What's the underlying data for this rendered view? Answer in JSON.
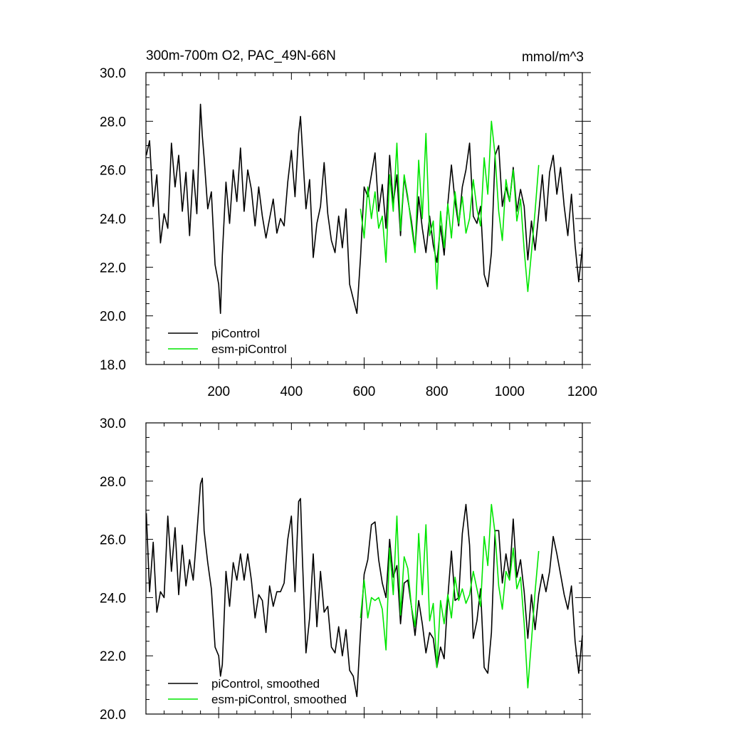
{
  "chart_data": [
    {
      "type": "line",
      "title": "300m-700m O2, PAC_49N-66N",
      "units": "mmol/m^3",
      "xlim": [
        0,
        1200
      ],
      "ylim": [
        18.0,
        30.0
      ],
      "xticks": [
        200,
        400,
        600,
        800,
        1000,
        1200
      ],
      "yticks": [
        "18.0",
        "20.0",
        "22.0",
        "24.0",
        "26.0",
        "28.0",
        "30.0"
      ],
      "grid": false,
      "legend": "bottom-left",
      "series": [
        {
          "name": "piControl",
          "color": "#000000",
          "x": [
            1,
            10,
            20,
            30,
            40,
            50,
            60,
            70,
            80,
            90,
            100,
            110,
            120,
            130,
            140,
            150,
            155,
            160,
            170,
            180,
            190,
            200,
            205,
            210,
            220,
            230,
            240,
            250,
            260,
            270,
            280,
            290,
            300,
            310,
            320,
            330,
            340,
            350,
            360,
            370,
            380,
            390,
            400,
            410,
            420,
            425,
            430,
            440,
            450,
            460,
            470,
            480,
            490,
            500,
            510,
            520,
            530,
            540,
            550,
            560,
            570,
            580,
            590,
            600,
            610,
            620,
            630,
            640,
            650,
            660,
            670,
            680,
            690,
            700,
            710,
            720,
            730,
            740,
            750,
            760,
            770,
            780,
            790,
            800,
            810,
            820,
            830,
            840,
            850,
            860,
            870,
            880,
            890,
            900,
            910,
            920,
            930,
            940,
            950,
            960,
            970,
            980,
            990,
            1000,
            1010,
            1020,
            1030,
            1040,
            1050,
            1060,
            1070,
            1080,
            1090,
            1100,
            1110,
            1120,
            1130,
            1140,
            1150,
            1160,
            1170,
            1180,
            1190,
            1200
          ],
          "values": [
            26.6,
            27.2,
            24.5,
            25.8,
            23.0,
            24.2,
            23.6,
            27.1,
            25.3,
            26.6,
            24.3,
            25.9,
            23.3,
            26.0,
            24.2,
            28.7,
            27.4,
            26.5,
            24.4,
            25.1,
            22.1,
            21.3,
            20.1,
            22.5,
            25.5,
            23.8,
            26.0,
            24.7,
            26.9,
            24.3,
            26.0,
            25.2,
            23.7,
            25.3,
            24.1,
            23.2,
            24.0,
            24.8,
            23.4,
            24.0,
            23.7,
            25.5,
            26.8,
            24.9,
            27.5,
            28.2,
            26.9,
            24.4,
            25.6,
            22.4,
            23.8,
            24.5,
            26.3,
            24.2,
            23.1,
            22.6,
            24.1,
            22.8,
            24.4,
            21.3,
            20.7,
            20.1,
            22.4,
            25.3,
            24.9,
            25.8,
            26.7,
            24.3,
            25.4,
            23.6,
            26.6,
            24.6,
            25.8,
            23.3,
            25.7,
            24.8,
            23.9,
            22.7,
            24.9,
            23.6,
            22.6,
            24.1,
            22.9,
            22.2,
            23.7,
            22.5,
            24.6,
            26.2,
            24.7,
            23.7,
            25.3,
            26.0,
            27.1,
            24.1,
            23.8,
            24.5,
            21.7,
            21.2,
            22.6,
            26.6,
            27.0,
            24.5,
            25.3,
            24.7,
            26.1,
            24.3,
            25.2,
            24.5,
            22.3,
            23.9,
            22.7,
            24.2,
            25.8,
            23.9,
            25.9,
            26.6,
            25.0,
            26.1,
            24.5,
            23.3,
            25.0,
            22.9,
            21.4,
            22.8
          ]
        },
        {
          "name": "esm-piControl",
          "color": "#00e600",
          "x": [
            590,
            600,
            610,
            620,
            630,
            640,
            650,
            660,
            670,
            680,
            690,
            700,
            710,
            720,
            730,
            740,
            750,
            760,
            770,
            780,
            790,
            800,
            810,
            820,
            830,
            840,
            850,
            860,
            870,
            880,
            890,
            900,
            910,
            920,
            930,
            940,
            950,
            960,
            970,
            980,
            990,
            1000,
            1010,
            1020,
            1030,
            1040,
            1050,
            1060,
            1070,
            1080
          ],
          "values": [
            24.4,
            23.2,
            25.3,
            24.0,
            25.1,
            23.6,
            24.1,
            22.2,
            25.8,
            24.3,
            27.1,
            23.5,
            25.8,
            24.9,
            23.7,
            22.6,
            26.4,
            24.0,
            27.5,
            23.3,
            23.9,
            21.1,
            24.3,
            22.8,
            24.6,
            23.2,
            25.1,
            23.8,
            24.9,
            23.4,
            24.0,
            25.6,
            24.4,
            23.7,
            26.5,
            25.0,
            28.0,
            26.6,
            24.3,
            23.1,
            25.6,
            24.7,
            26.0,
            23.9,
            24.8,
            22.7,
            21.0,
            22.6,
            24.3,
            26.2
          ]
        }
      ]
    },
    {
      "type": "line",
      "title": "",
      "xlim": [
        0,
        1200
      ],
      "ylim": [
        20.0,
        30.0
      ],
      "yticks": [
        "20.0",
        "22.0",
        "24.0",
        "26.0",
        "28.0",
        "30.0"
      ],
      "grid": false,
      "legend": "bottom-left",
      "series": [
        {
          "name": "piControl, smoothed",
          "color": "#000000",
          "x": [
            1,
            10,
            20,
            30,
            40,
            50,
            60,
            70,
            80,
            90,
            100,
            110,
            120,
            130,
            140,
            150,
            155,
            160,
            170,
            180,
            190,
            200,
            205,
            210,
            220,
            230,
            240,
            250,
            260,
            270,
            280,
            290,
            300,
            310,
            320,
            330,
            340,
            350,
            360,
            370,
            380,
            390,
            400,
            410,
            420,
            425,
            430,
            440,
            450,
            460,
            470,
            480,
            490,
            500,
            510,
            520,
            530,
            540,
            550,
            560,
            570,
            580,
            590,
            600,
            610,
            620,
            630,
            640,
            650,
            660,
            670,
            680,
            690,
            700,
            710,
            720,
            730,
            740,
            750,
            760,
            770,
            780,
            790,
            800,
            810,
            820,
            830,
            840,
            850,
            860,
            870,
            880,
            890,
            900,
            910,
            920,
            930,
            940,
            950,
            960,
            970,
            980,
            990,
            1000,
            1010,
            1020,
            1030,
            1040,
            1050,
            1060,
            1070,
            1080,
            1090,
            1100,
            1110,
            1120,
            1130,
            1140,
            1150,
            1160,
            1170,
            1180,
            1190,
            1200
          ],
          "values": [
            26.9,
            24.2,
            25.9,
            23.5,
            24.2,
            24.0,
            26.8,
            24.9,
            26.4,
            24.1,
            25.8,
            24.4,
            25.3,
            24.6,
            26.2,
            27.9,
            28.1,
            26.3,
            25.2,
            24.3,
            22.3,
            22.0,
            21.3,
            21.7,
            24.9,
            23.7,
            25.2,
            24.6,
            25.5,
            24.6,
            25.5,
            24.6,
            23.3,
            24.1,
            23.9,
            22.8,
            24.4,
            23.7,
            24.2,
            24.2,
            24.5,
            26.0,
            26.8,
            24.2,
            27.3,
            27.4,
            25.4,
            22.1,
            23.3,
            25.5,
            23.0,
            24.9,
            23.5,
            23.7,
            22.3,
            22.1,
            23.0,
            22.0,
            22.9,
            21.5,
            21.3,
            20.6,
            22.8,
            24.8,
            25.3,
            26.5,
            26.6,
            25.3,
            24.5,
            24.0,
            26.0,
            24.7,
            25.1,
            23.1,
            24.5,
            24.6,
            23.7,
            22.7,
            23.9,
            23.1,
            22.1,
            22.8,
            22.6,
            21.6,
            22.3,
            21.9,
            24.0,
            25.6,
            23.9,
            24.0,
            26.2,
            27.2,
            25.8,
            22.6,
            23.2,
            24.3,
            21.6,
            21.4,
            22.8,
            26.3,
            26.3,
            24.5,
            25.5,
            24.7,
            26.7,
            24.7,
            25.3,
            24.2,
            22.6,
            24.1,
            22.9,
            24.1,
            24.8,
            24.2,
            24.9,
            26.1,
            25.5,
            24.8,
            24.1,
            23.6,
            24.4,
            22.5,
            21.4,
            22.7
          ]
        },
        {
          "name": "esm-piControl, smoothed",
          "color": "#00e600",
          "x": [
            590,
            600,
            610,
            620,
            630,
            640,
            650,
            660,
            670,
            680,
            690,
            700,
            710,
            720,
            730,
            740,
            750,
            760,
            770,
            780,
            790,
            800,
            810,
            820,
            830,
            840,
            850,
            860,
            870,
            880,
            890,
            900,
            910,
            920,
            930,
            940,
            950,
            960,
            970,
            980,
            990,
            1000,
            1010,
            1020,
            1030,
            1040,
            1050,
            1060,
            1070,
            1080
          ],
          "values": [
            23.3,
            24.6,
            23.3,
            24.0,
            23.9,
            24.0,
            23.6,
            22.2,
            25.7,
            24.1,
            26.8,
            23.4,
            25.4,
            25.0,
            23.7,
            23.0,
            26.2,
            24.1,
            26.5,
            23.2,
            23.8,
            21.6,
            23.9,
            23.1,
            24.1,
            23.3,
            24.7,
            23.9,
            24.3,
            23.8,
            24.1,
            24.9,
            24.3,
            23.7,
            26.1,
            25.1,
            27.2,
            26.2,
            24.4,
            23.6,
            24.9,
            24.6,
            25.7,
            24.3,
            24.7,
            23.1,
            20.9,
            22.5,
            24.2,
            25.6
          ]
        }
      ]
    }
  ]
}
